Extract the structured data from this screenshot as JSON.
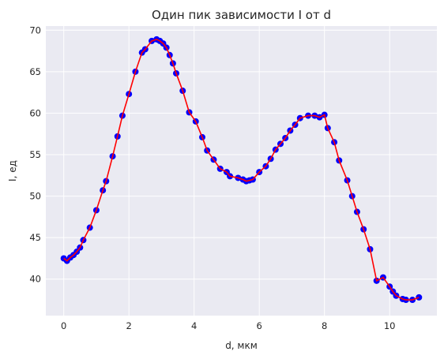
{
  "chart_data": {
    "type": "line",
    "title": "Один пик зависимости I от d",
    "xlabel": "d, мкм",
    "ylabel": "I, ед",
    "xlim": [
      -0.55,
      11.45
    ],
    "ylim": [
      35.6,
      70.5
    ],
    "xticks": [
      0,
      2,
      4,
      6,
      8,
      10
    ],
    "yticks": [
      40,
      45,
      50,
      55,
      60,
      65,
      70
    ],
    "grid": true,
    "colors": {
      "background": "#eaeaf2",
      "grid": "#ffffff",
      "line": "#ff0000",
      "marker": "#0000ff"
    },
    "x": [
      0.0,
      0.1,
      0.2,
      0.3,
      0.4,
      0.5,
      0.6,
      0.8,
      1.0,
      1.2,
      1.3,
      1.5,
      1.65,
      1.8,
      2.0,
      2.2,
      2.4,
      2.5,
      2.7,
      2.85,
      2.95,
      3.05,
      3.15,
      3.25,
      3.35,
      3.45,
      3.65,
      3.85,
      4.05,
      4.25,
      4.4,
      4.6,
      4.8,
      5.0,
      5.1,
      5.35,
      5.5,
      5.6,
      5.7,
      5.8,
      6.0,
      6.2,
      6.35,
      6.5,
      6.65,
      6.8,
      6.95,
      7.1,
      7.25,
      7.5,
      7.7,
      7.85,
      8.0,
      8.1,
      8.3,
      8.45,
      8.7,
      8.85,
      9.0,
      9.2,
      9.4,
      9.6,
      9.8,
      10.0,
      10.1,
      10.2,
      10.4,
      10.5,
      10.7,
      10.9
    ],
    "y": [
      42.5,
      42.2,
      42.6,
      42.9,
      43.3,
      43.8,
      44.7,
      46.2,
      48.3,
      50.7,
      51.8,
      54.8,
      57.2,
      59.7,
      62.3,
      65.0,
      67.3,
      67.7,
      68.7,
      68.9,
      68.7,
      68.4,
      67.9,
      67.0,
      66.0,
      64.8,
      62.7,
      60.1,
      59.0,
      57.1,
      55.5,
      54.4,
      53.3,
      52.9,
      52.4,
      52.2,
      52.0,
      51.8,
      51.9,
      52.0,
      52.9,
      53.6,
      54.5,
      55.6,
      56.3,
      57.0,
      57.9,
      58.6,
      59.4,
      59.7,
      59.7,
      59.5,
      59.8,
      58.2,
      56.5,
      54.3,
      51.9,
      50.0,
      48.1,
      46.0,
      43.6,
      39.8,
      40.2,
      39.1,
      38.5,
      38.0,
      37.6,
      37.5,
      37.5,
      37.8
    ]
  }
}
